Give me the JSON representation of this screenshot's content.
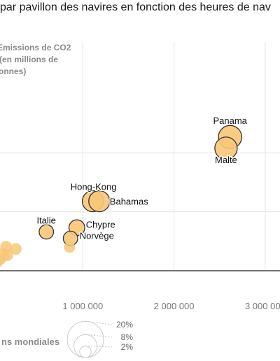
{
  "title": "par pavillon des navires en fonction des heures de nav",
  "chart_data": {
    "type": "scatter",
    "xlim": [
      0,
      3150000
    ],
    "ylim": [
      0,
      270
    ],
    "x_ticks": [
      1000000,
      2000000,
      3000000
    ],
    "x_tick_labels": [
      "1 000 000",
      "2 000 000",
      "3 000 000"
    ],
    "ylabel_lines": [
      "Emissions de CO2",
      "(en millions de",
      "tonnes)"
    ],
    "grid": true,
    "bubble_color": "#f7c87a",
    "bubble_edge_labeled": "#333333",
    "bubble_edge_unlabeled": "#f7c87a",
    "points": [
      {
        "label": "Panama",
        "x": 2615000,
        "y": 227,
        "share": 5.2
      },
      {
        "label": "Malte",
        "x": 2570000,
        "y": 208,
        "share": 4.8
      },
      {
        "label": "Hong-Kong",
        "x": 1110000,
        "y": 118,
        "share": 4.2
      },
      {
        "label": "Bahamas",
        "x": 1180000,
        "y": 118,
        "share": 4.2
      },
      {
        "label": "Italie",
        "x": 600000,
        "y": 66,
        "share": 2.0
      },
      {
        "label": "Chypre",
        "x": 935000,
        "y": 73,
        "share": 2.4
      },
      {
        "label": "Norvège",
        "x": 865000,
        "y": 55,
        "share": 2.0
      },
      {
        "label": "",
        "x": 855000,
        "y": 40,
        "share": 1.0
      },
      {
        "label": "",
        "x": 160000,
        "y": 40,
        "share": 1.2
      },
      {
        "label": "",
        "x": 265000,
        "y": 37,
        "share": 1.1
      },
      {
        "label": "",
        "x": 130000,
        "y": 28,
        "share": 1.4
      },
      {
        "label": "",
        "x": 175000,
        "y": 26,
        "share": 1.0
      },
      {
        "label": "",
        "x": 95000,
        "y": 20,
        "share": 1.1
      },
      {
        "label": "",
        "x": 60000,
        "y": 14,
        "share": 1.0
      },
      {
        "label": "",
        "x": 30000,
        "y": 8,
        "share": 1.0
      },
      {
        "label": "",
        "x": 15000,
        "y": 4,
        "share": 0.8
      }
    ],
    "legend": {
      "title": "ns mondiales",
      "items": [
        {
          "label": "20%",
          "share": 20
        },
        {
          "label": "8%",
          "share": 8
        },
        {
          "label": "2%",
          "share": 2
        }
      ]
    }
  }
}
